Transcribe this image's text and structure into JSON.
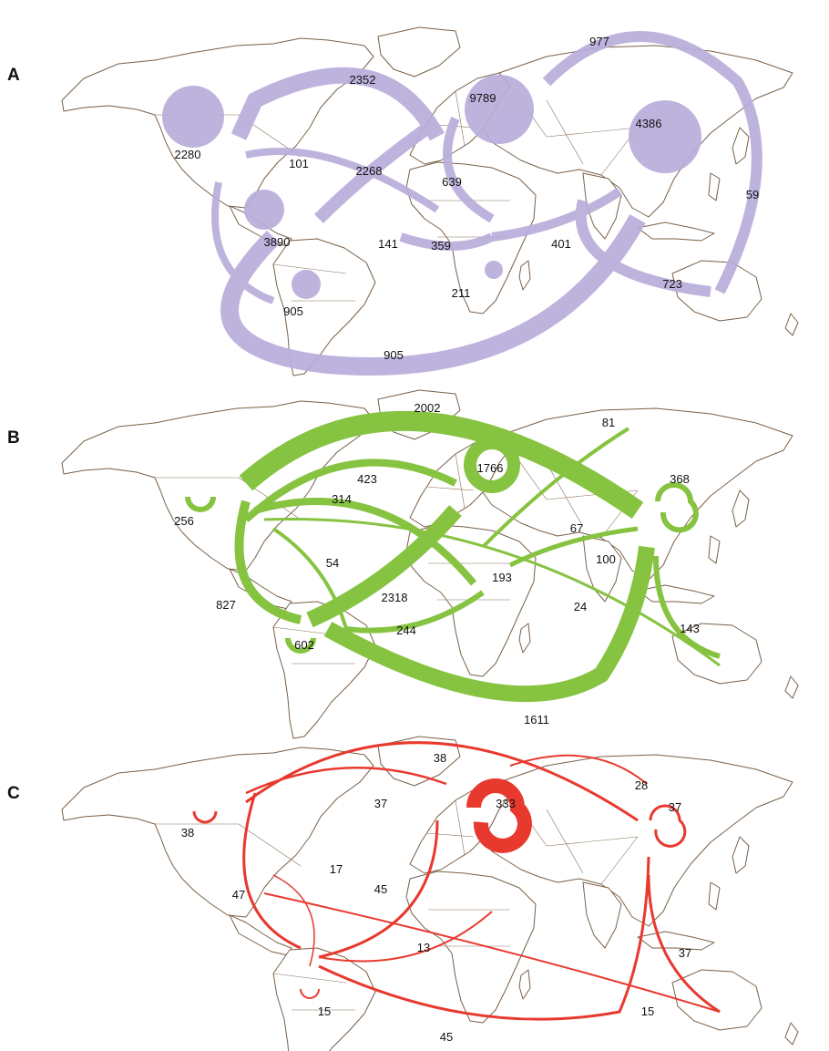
{
  "panels": [
    {
      "letter": "A",
      "color": "#b9addb",
      "labels": [
        "977",
        "2352",
        "9789",
        "4386",
        "2280",
        "101",
        "2268",
        "639",
        "59",
        "3890",
        "141",
        "359",
        "401",
        "211",
        "723",
        "905",
        "905"
      ]
    },
    {
      "letter": "B",
      "color": "#86c341",
      "labels": [
        "2002",
        "81",
        "1766",
        "368",
        "423",
        "314",
        "256",
        "67",
        "100",
        "54",
        "193",
        "827",
        "2318",
        "24",
        "244",
        "143",
        "602",
        "1611"
      ]
    },
    {
      "letter": "C",
      "color": "#e8392e",
      "labels": [
        "38",
        "28",
        "37",
        "333",
        "37",
        "38",
        "17",
        "45",
        "47",
        "13",
        "37",
        "15",
        "15",
        "45"
      ]
    }
  ]
}
